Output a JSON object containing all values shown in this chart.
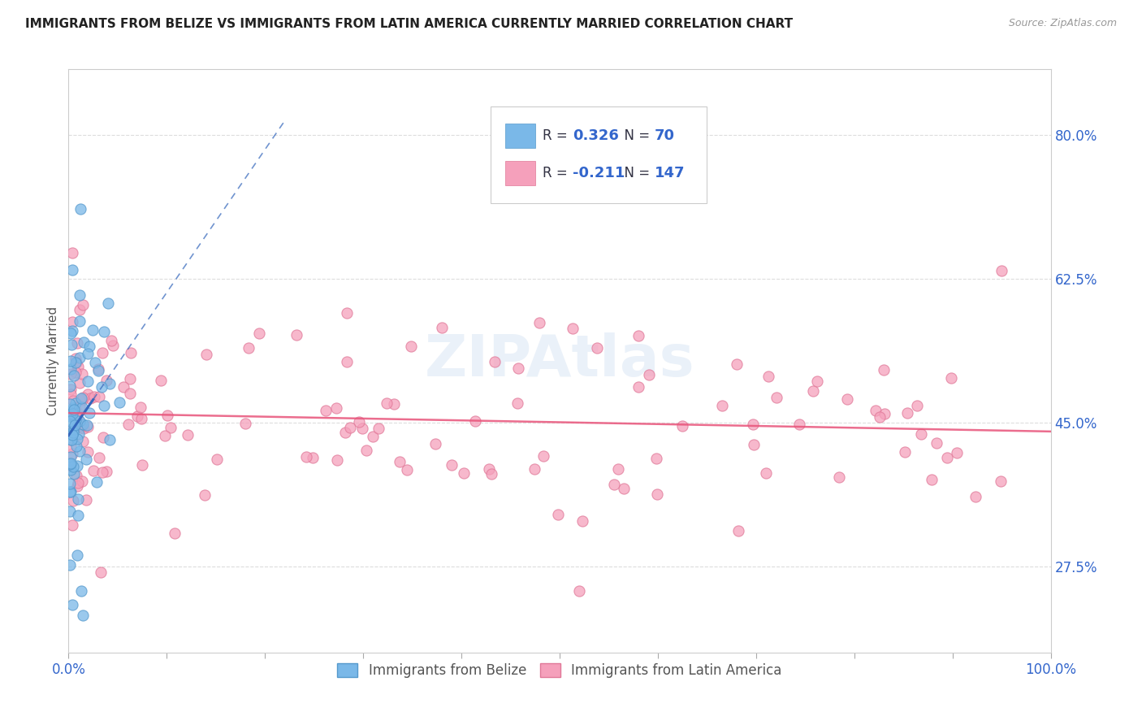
{
  "title": "IMMIGRANTS FROM BELIZE VS IMMIGRANTS FROM LATIN AMERICA CURRENTLY MARRIED CORRELATION CHART",
  "source": "Source: ZipAtlas.com",
  "ylabel": "Currently Married",
  "ytick_values": [
    0.275,
    0.45,
    0.625,
    0.8
  ],
  "ytick_labels": [
    "27.5%",
    "45.0%",
    "62.5%",
    "80.0%"
  ],
  "xmin": 0.0,
  "xmax": 1.0,
  "ymin": 0.17,
  "ymax": 0.88,
  "belize_color": "#7ab8e8",
  "belize_edge_color": "#5599cc",
  "latin_color": "#f5a0bb",
  "latin_edge_color": "#e07898",
  "belize_trend_color": "#3366bb",
  "latin_trend_color": "#e8547a",
  "watermark": "ZIPAtlas",
  "belize_label": "Immigrants from Belize",
  "latin_label": "Immigrants from Latin America",
  "grid_color": "#dddddd",
  "title_color": "#222222",
  "source_color": "#999999",
  "ylabel_color": "#555555",
  "tick_color": "#3366cc",
  "legend_R1": "0.326",
  "legend_N1": "70",
  "legend_R2": "-0.211",
  "legend_N2": "147"
}
